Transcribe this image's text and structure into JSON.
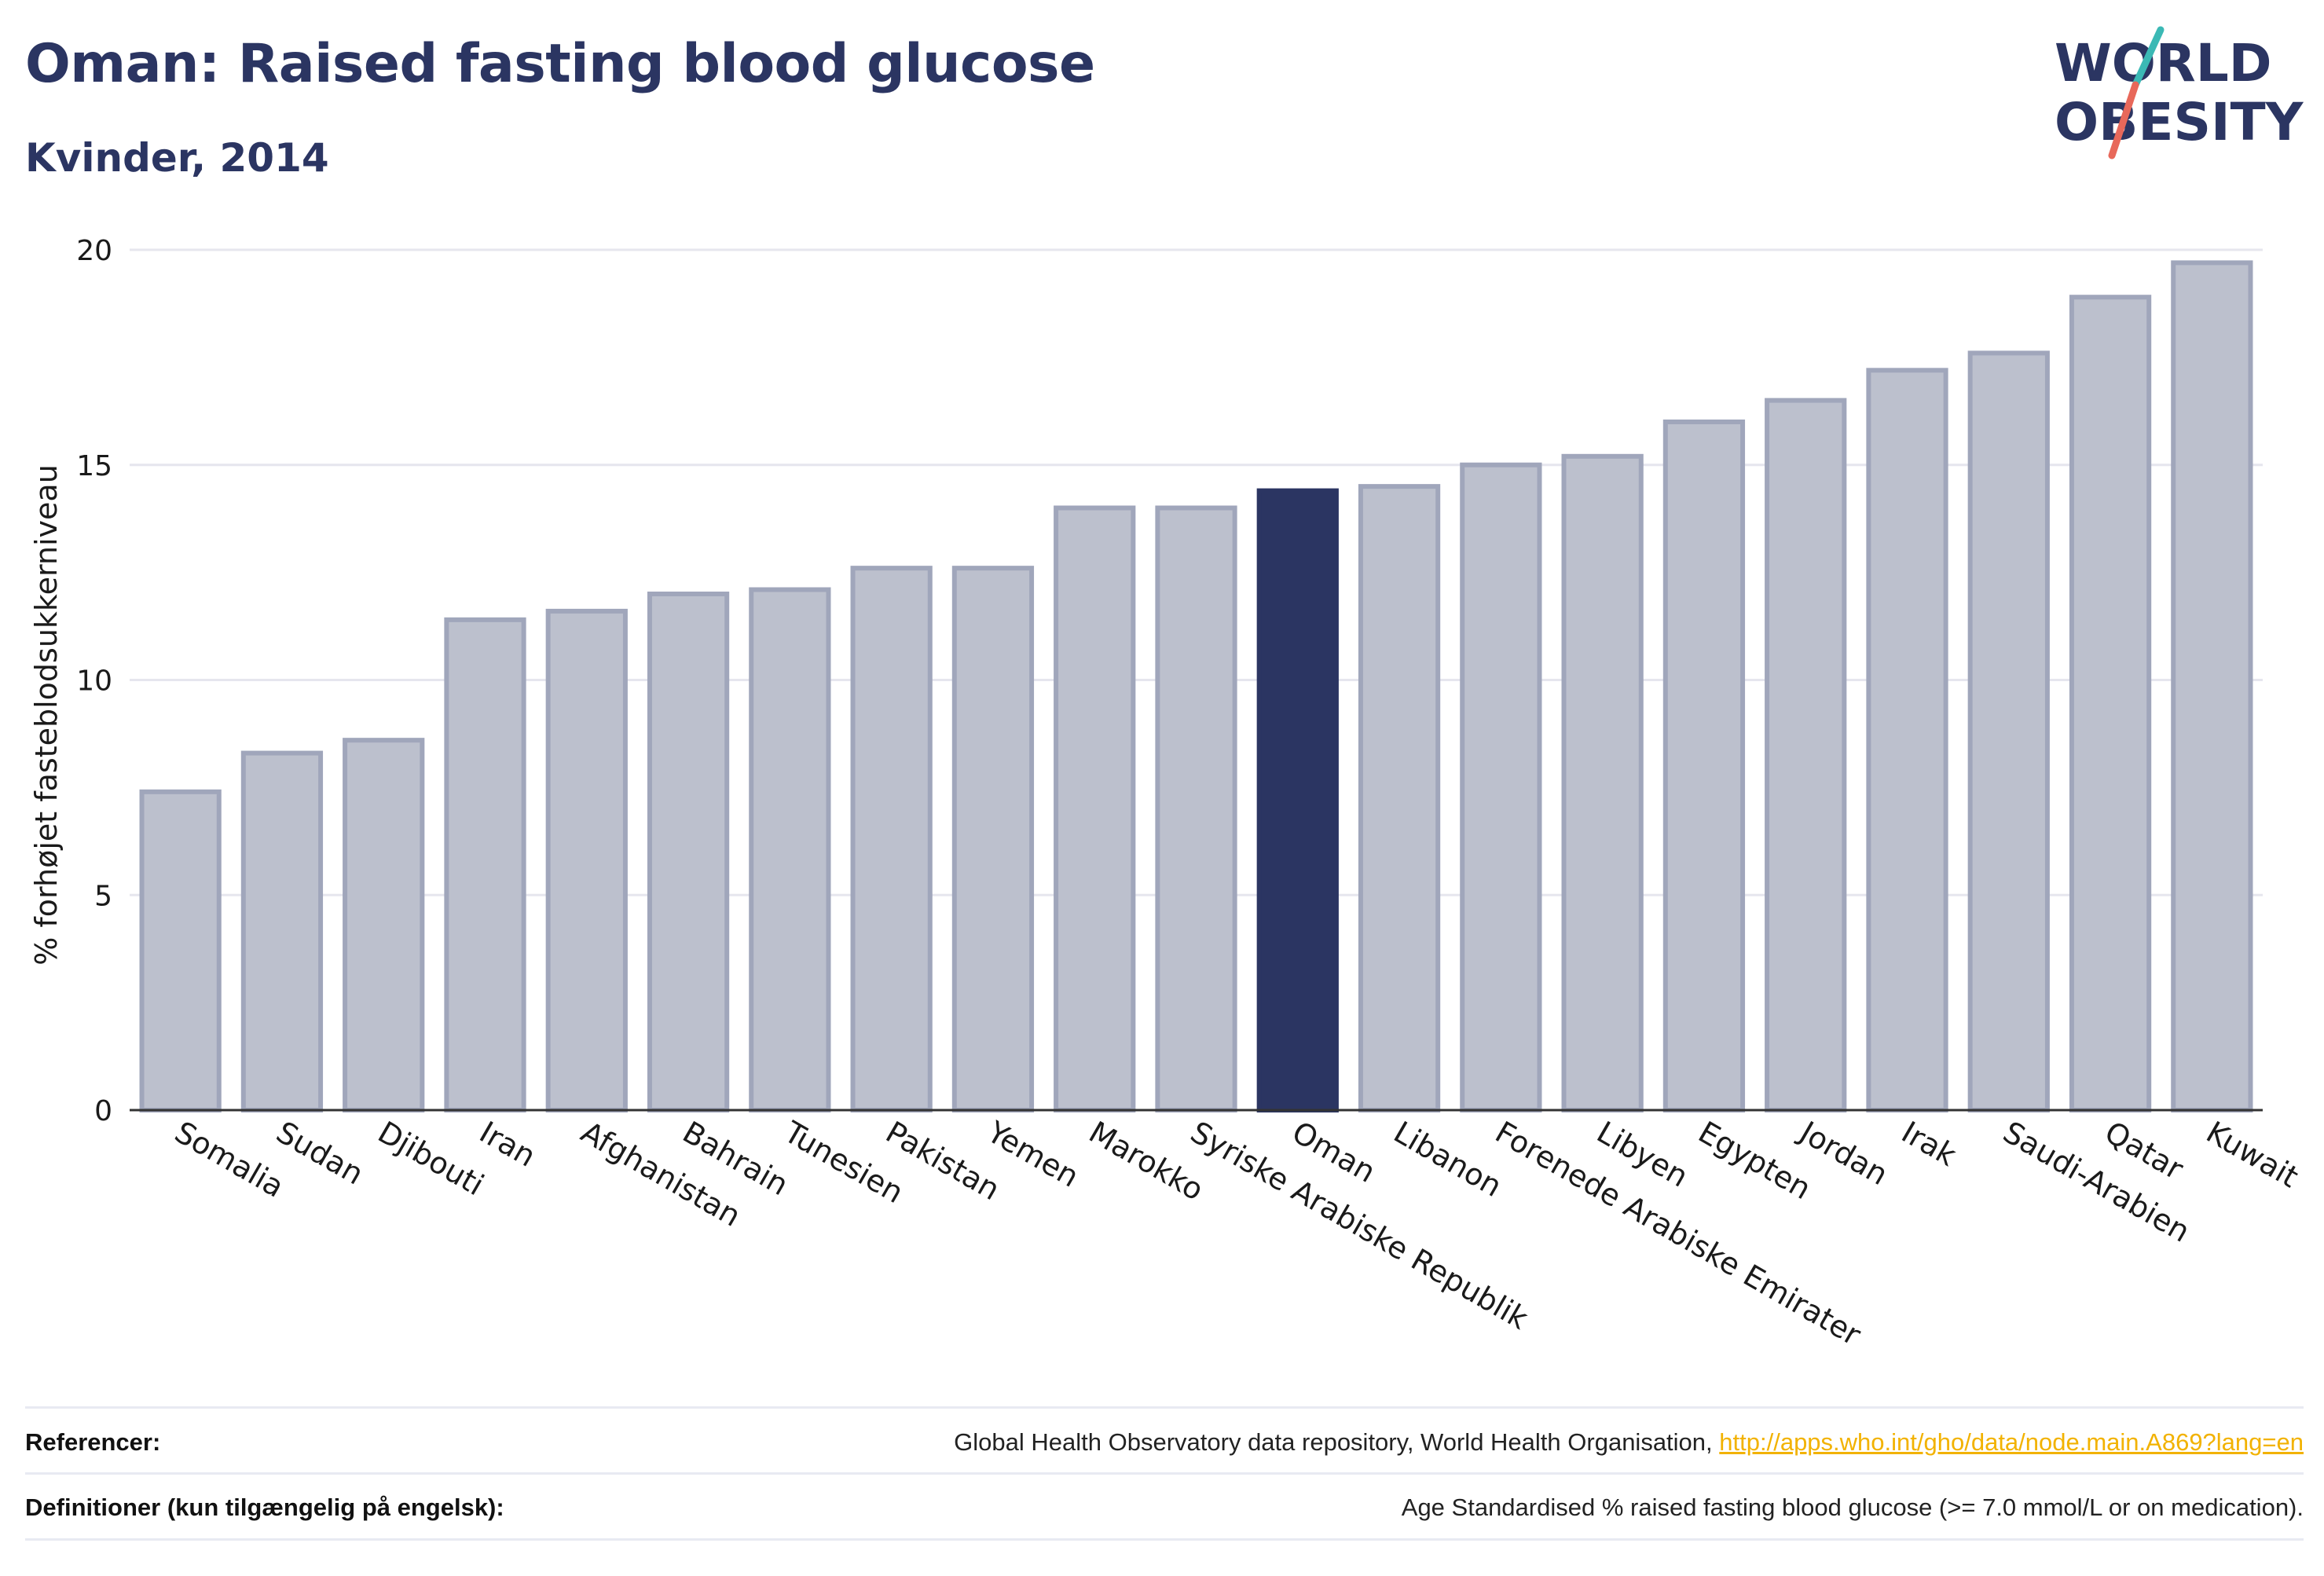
{
  "title": "Oman: Raised fasting blood glucose",
  "subtitle": "Kvinder, 2014",
  "logo": {
    "line1": "WORLD",
    "line2": "OBESITY"
  },
  "colors": {
    "highlight": "#2b3562",
    "bar_fill": "#bcc0cd",
    "bar_stroke": "#a0a6bb",
    "axis": "#333333",
    "grid": "#e6e6ee",
    "link": "#f2b200"
  },
  "chart_data": {
    "type": "bar",
    "ylabel": "% forhøjet fasteblodsukkerniveau",
    "ylim": [
      0,
      20
    ],
    "yticks": [
      0,
      5,
      10,
      15,
      20
    ],
    "grid": true,
    "highlight": "Oman",
    "categories": [
      "Somalia",
      "Sudan",
      "Djibouti",
      "Iran",
      "Afghanistan",
      "Bahrain",
      "Tunesien",
      "Pakistan",
      "Yemen",
      "Marokko",
      "Syriske Arabiske Republik",
      "Oman",
      "Libanon",
      "Forenede Arabiske Emirater",
      "Libyen",
      "Egypten",
      "Jordan",
      "Irak",
      "Saudi-Arabien",
      "Qatar",
      "Kuwait"
    ],
    "values": [
      7.4,
      8.3,
      8.6,
      11.4,
      11.6,
      12.0,
      12.1,
      12.6,
      12.6,
      14.0,
      14.0,
      14.4,
      14.5,
      15.0,
      15.2,
      16.0,
      16.5,
      17.2,
      17.6,
      18.9,
      19.7
    ]
  },
  "footer": {
    "references_label": "Referencer:",
    "references_text": "Global Health Observatory data repository, World Health Organisation,",
    "references_link": "http://apps.who.int/gho/data/node.main.A869?lang=en",
    "definitions_label": "Definitioner (kun tilgængelig på engelsk):",
    "definitions_text": "Age Standardised % raised fasting blood glucose (>= 7.0 mmol/L or on medication)."
  }
}
